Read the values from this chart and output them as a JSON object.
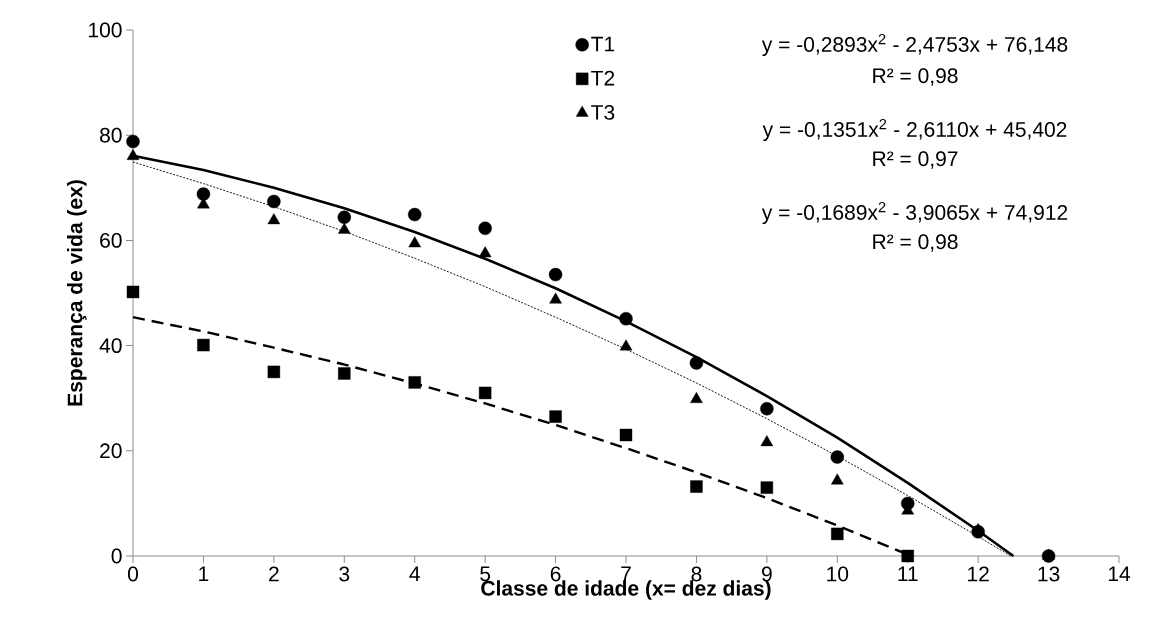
{
  "chart_data": {
    "type": "scatter",
    "xlabel": "Classe de idade (x= dez dias)",
    "ylabel": "Esperança de vida (ex)",
    "xlim": [
      0,
      14
    ],
    "ylim": [
      0,
      100
    ],
    "xticks": [
      0,
      1,
      2,
      3,
      4,
      5,
      6,
      7,
      8,
      9,
      10,
      11,
      12,
      13,
      14
    ],
    "yticks": [
      0,
      20,
      40,
      60,
      80,
      100
    ],
    "legend": "top",
    "grid": false,
    "series": [
      {
        "name": "T1",
        "marker": "circle",
        "color": "#000000",
        "x": [
          0,
          1,
          2,
          3,
          4,
          5,
          6,
          7,
          8,
          9,
          10,
          11,
          12,
          13
        ],
        "values": [
          78.8,
          68.8,
          67.4,
          64.4,
          64.9,
          62.3,
          53.5,
          45.1,
          36.7,
          28,
          18.8,
          10,
          4.6,
          0
        ]
      },
      {
        "name": "T2",
        "marker": "square",
        "color": "#000000",
        "x": [
          0,
          1,
          2,
          3,
          4,
          5,
          6,
          7,
          8,
          9,
          10,
          11
        ],
        "values": [
          50.2,
          40.1,
          35,
          34.7,
          33,
          31,
          26.5,
          23,
          13.2,
          13,
          4.2,
          0
        ]
      },
      {
        "name": "T3",
        "marker": "triangle",
        "color": "#000000",
        "x": [
          0,
          1,
          2,
          3,
          4,
          5,
          6,
          7,
          8,
          9,
          10,
          11,
          12,
          13
        ],
        "values": [
          76,
          66.8,
          63.8,
          62,
          59.4,
          57.5,
          48.7,
          39.8,
          29.8,
          21.6,
          14.3,
          8.6,
          4.9,
          0
        ]
      },
      {
        "type": "line",
        "line_style": "solid",
        "marker": "none",
        "color": "#000000",
        "x": [
          0,
          1,
          2,
          3,
          4,
          5,
          6,
          7,
          8,
          9,
          10,
          11,
          12,
          12.5
        ],
        "values": [
          76.1,
          73.4,
          70,
          66.1,
          61.6,
          56.5,
          50.9,
          44.6,
          37.8,
          30.4,
          22.5,
          13.9,
          4.8,
          0
        ]
      },
      {
        "type": "line",
        "line_style": "dashed",
        "marker": "none",
        "color": "#000000",
        "x": [
          0,
          1,
          2,
          3,
          4,
          5,
          6,
          7,
          8,
          9,
          10,
          11.05
        ],
        "values": [
          45.4,
          42.7,
          39.6,
          36.4,
          32.8,
          29,
          24.9,
          20.5,
          15.9,
          11,
          5.8,
          0
        ]
      },
      {
        "type": "line",
        "line_style": "dotted",
        "marker": "none",
        "color": "#000000",
        "x": [
          0,
          1,
          2,
          3,
          4,
          5,
          6,
          7,
          8,
          9,
          10,
          11,
          12,
          12.45
        ],
        "values": [
          74.9,
          70.8,
          66.4,
          61.7,
          56.6,
          51.2,
          45.4,
          39.3,
          32.9,
          26.1,
          19,
          11.5,
          3.7,
          0.1
        ]
      }
    ],
    "annotations": [
      "y = -0,2893x$^{2}$ - 2,4753x + 76,148",
      "R² = 0,98",
      "y = -0,1351x$^{2}$ - 2,6110x + 45,402",
      "R² = 0,97",
      "y = -0,1689x$^{2}$ - 3,9065x + 74,912",
      "R² = 0,98"
    ]
  }
}
